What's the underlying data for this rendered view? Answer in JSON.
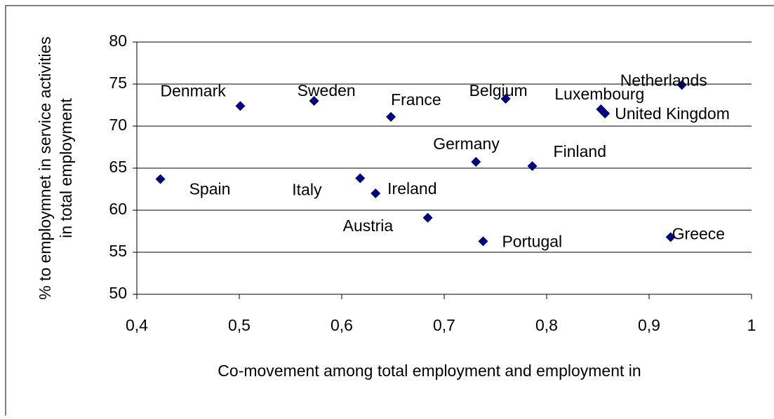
{
  "chart_data": {
    "type": "scatter",
    "x_label": "Co-movement among total employment and employment in",
    "y_label": [
      "% to employmnet in service activities",
      "in total employment"
    ],
    "color": "#000080",
    "points": [
      "Denmark",
      "Sweden",
      "France",
      "Belgium",
      "Netherlands",
      "Luxembourg",
      "United Kingdom",
      "Germany",
      "Finland",
      "Spain",
      "Italy",
      "Ireland",
      "Austria",
      "Portugal",
      "Greece"
    ],
    "x": [
      0.501,
      0.573,
      0.648,
      0.76,
      0.932,
      0.853,
      0.857,
      0.731,
      0.786,
      0.423,
      0.618,
      0.633,
      0.684,
      0.738,
      0.921
    ],
    "values": [
      72.4,
      73.0,
      71.1,
      73.25,
      74.9,
      72.0,
      71.5,
      65.75,
      65.25,
      63.7,
      63.8,
      62.0,
      59.1,
      56.3,
      56.8
    ],
    "xlim": [
      0.4,
      1
    ],
    "xticks": [
      {
        "value": 0.4,
        "label": "0,4"
      },
      {
        "value": 0.5,
        "label": "0,5"
      },
      {
        "value": 0.6,
        "label": "0,6"
      },
      {
        "value": 0.7,
        "label": "0,7"
      },
      {
        "value": 0.8,
        "label": "0,8"
      },
      {
        "value": 0.9,
        "label": "0,9"
      },
      1
    ],
    "ylim": [
      50,
      80
    ],
    "yticks": [
      50,
      55,
      60,
      65,
      70,
      75,
      80
    ],
    "grid": true
  }
}
